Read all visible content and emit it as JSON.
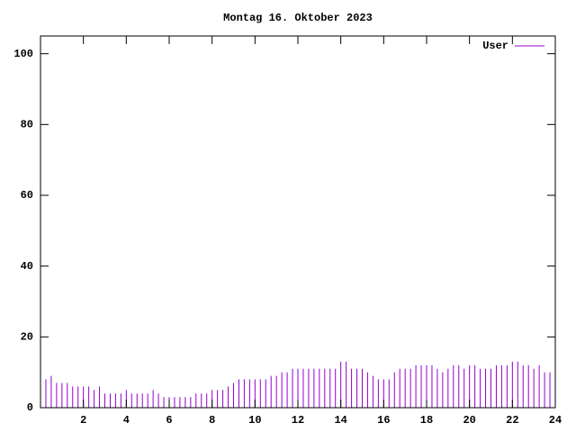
{
  "chart_data": {
    "type": "impulse",
    "title": "Montag 16. Oktober 2023",
    "x": [
      0,
      0.25,
      0.5,
      0.75,
      1,
      1.25,
      1.5,
      1.75,
      2,
      2.25,
      2.5,
      2.75,
      3,
      3.25,
      3.5,
      3.75,
      4,
      4.25,
      4.5,
      4.75,
      5,
      5.25,
      5.5,
      5.75,
      6,
      6.25,
      6.5,
      6.75,
      7,
      7.25,
      7.5,
      7.75,
      8,
      8.25,
      8.5,
      8.75,
      9,
      9.25,
      9.5,
      9.75,
      10,
      10.25,
      10.5,
      10.75,
      11,
      11.25,
      11.5,
      11.75,
      12,
      12.25,
      12.5,
      12.75,
      13,
      13.25,
      13.5,
      13.75,
      14,
      14.25,
      14.5,
      14.75,
      15,
      15.25,
      15.5,
      15.75,
      16,
      16.25,
      16.5,
      16.75,
      17,
      17.25,
      17.5,
      17.75,
      18,
      18.25,
      18.5,
      18.75,
      19,
      19.25,
      19.5,
      19.75,
      20,
      20.25,
      20.5,
      20.75,
      21,
      21.25,
      21.5,
      21.75,
      22,
      22.25,
      22.5,
      22.75,
      23,
      23.25,
      23.5,
      23.75,
      24
    ],
    "series": [
      {
        "name": "User",
        "color": "#9400d3",
        "values": [
          8,
          8,
          9,
          7,
          7,
          7,
          6,
          6,
          6,
          6,
          5,
          6,
          4,
          4,
          4,
          4,
          5,
          4,
          4,
          4,
          4,
          5,
          4,
          3,
          3,
          3,
          3,
          3,
          3,
          4,
          4,
          4,
          5,
          5,
          5,
          6,
          7,
          8,
          8,
          8,
          8,
          8,
          8,
          9,
          9,
          10,
          10,
          11,
          11,
          11,
          11,
          11,
          11,
          11,
          11,
          11,
          13,
          13,
          11,
          11,
          11,
          10,
          9,
          8,
          8,
          8,
          10,
          11,
          11,
          11,
          12,
          12,
          12,
          12,
          11,
          10,
          11,
          12,
          12,
          11,
          12,
          12,
          11,
          11,
          11,
          12,
          12,
          12,
          13,
          13,
          12,
          12,
          11,
          12,
          10,
          10,
          8
        ]
      }
    ],
    "xlim": [
      0,
      24
    ],
    "ylim": [
      0,
      105
    ],
    "xticks": [
      2,
      4,
      6,
      8,
      10,
      12,
      14,
      16,
      18,
      20,
      22,
      24
    ],
    "yticks": [
      0,
      20,
      40,
      60,
      80,
      100
    ],
    "legend": "top-right"
  }
}
